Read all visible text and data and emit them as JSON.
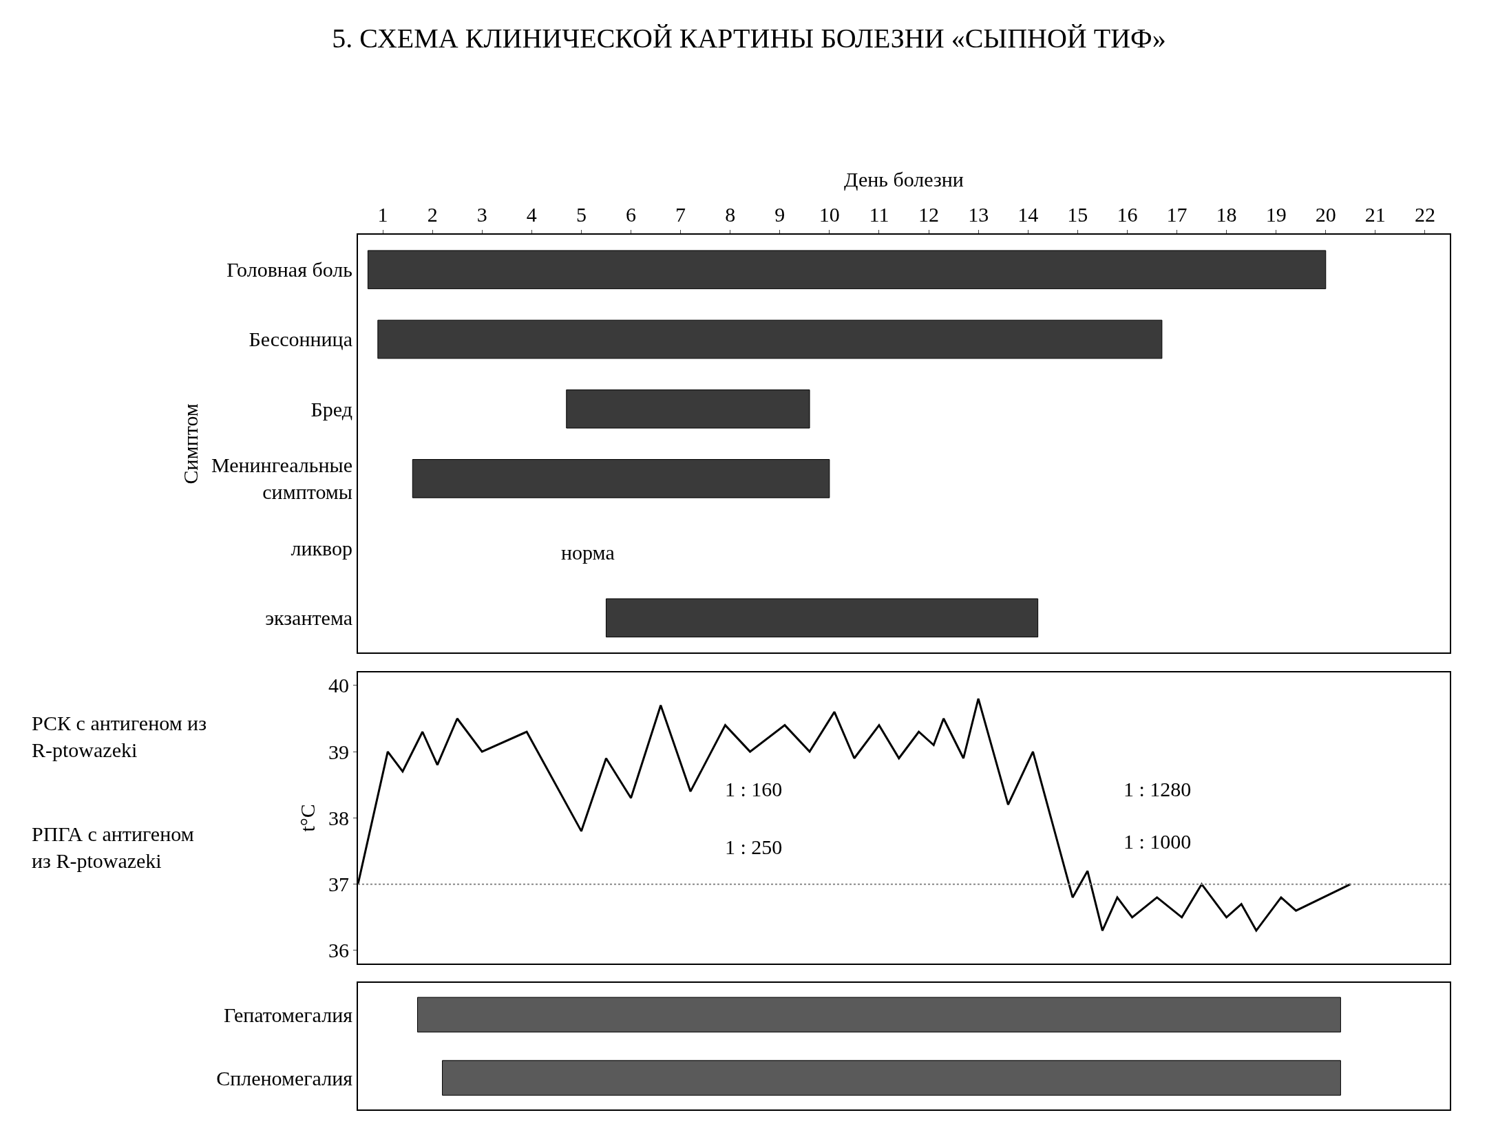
{
  "chart_data": [
    {
      "type": "bar",
      "orientation": "horizontal",
      "title": "5. СХЕМА КЛИНИЧЕСКОЙ КАРТИНЫ БОЛЕЗНИ «СЫПНОЙ ТИФ»",
      "xlabel": "День болезни",
      "ylabel": "Симптом",
      "categories": [
        "Головная боль",
        "Бессонница",
        "Бред",
        "Менингеальные симптомы",
        "ликвор",
        "экзантема"
      ],
      "base": [
        0.7,
        0.9,
        4.7,
        1.6,
        null,
        5.5
      ],
      "values": [
        19.3,
        15.8,
        4.9,
        8.4,
        null,
        8.7
      ],
      "color": "#3a3a3a",
      "xlim": [
        0.5,
        22.5
      ],
      "xticks": [
        1,
        2,
        3,
        4,
        5,
        6,
        7,
        8,
        9,
        10,
        11,
        12,
        13,
        14,
        15,
        16,
        17,
        18,
        19,
        20,
        21,
        22
      ],
      "annotations": [
        "норма"
      ]
    },
    {
      "type": "line",
      "ylabel": "t°C",
      "x": [
        0.5,
        1.1,
        1.4,
        1.8,
        2.1,
        2.5,
        3.0,
        3.9,
        5.0,
        5.5,
        6.0,
        6.6,
        7.2,
        7.9,
        8.4,
        9.1,
        9.6,
        10.1,
        10.5,
        11.0,
        11.4,
        11.8,
        12.1,
        12.3,
        12.7,
        13.0,
        13.6,
        14.1,
        14.9,
        15.2,
        15.5,
        15.8,
        16.1,
        16.6,
        17.1,
        17.5,
        18.0,
        18.3,
        18.6,
        19.1,
        19.4,
        20.5
      ],
      "values": [
        37.0,
        39.0,
        38.7,
        39.3,
        38.8,
        39.5,
        39.0,
        39.3,
        37.8,
        38.9,
        38.3,
        39.7,
        38.4,
        39.4,
        39.0,
        39.4,
        39.0,
        39.6,
        38.9,
        39.4,
        38.9,
        39.3,
        39.1,
        39.5,
        38.9,
        39.8,
        38.2,
        39.0,
        36.8,
        37.2,
        36.3,
        36.8,
        36.5,
        36.8,
        36.5,
        37.0,
        36.5,
        36.7,
        36.3,
        36.8,
        36.6,
        37.0
      ],
      "color": "#000000",
      "xlim": [
        0.5,
        22.5
      ],
      "xticks": [
        1,
        2,
        3,
        4,
        5,
        6,
        7,
        8,
        9,
        10,
        11,
        12,
        13,
        14,
        15,
        16,
        17,
        18,
        19,
        20,
        21,
        22
      ],
      "ylim": [
        35.8,
        40.2
      ],
      "yticks": [
        36,
        37,
        38,
        39,
        40
      ],
      "tick_labels": "y",
      "ref_lines": [
        {
          "axis": "y",
          "value": 37,
          "line_style": "dotted",
          "color": "#888888"
        }
      ],
      "annotations": [
        "РСК с антигеном из R-ptowazeki",
        "РПГА с антигеном из R-ptowazeki",
        "1 : 160",
        "1 : 250",
        "1 : 1280",
        "1 : 1000"
      ]
    },
    {
      "type": "bar",
      "orientation": "horizontal",
      "categories": [
        "Гепатомегалия",
        "Спленомегалия"
      ],
      "base": [
        1.7,
        2.2
      ],
      "values": [
        18.6,
        18.1
      ],
      "color": "#5a5a5a",
      "xlim": [
        0.5,
        22.5
      ],
      "xticks": [
        1,
        2,
        3,
        4,
        5,
        6,
        7,
        8,
        9,
        10,
        11,
        12,
        13,
        14,
        15,
        16,
        17,
        18,
        19,
        20,
        21,
        22
      ],
      "tick_labels": "y"
    }
  ]
}
